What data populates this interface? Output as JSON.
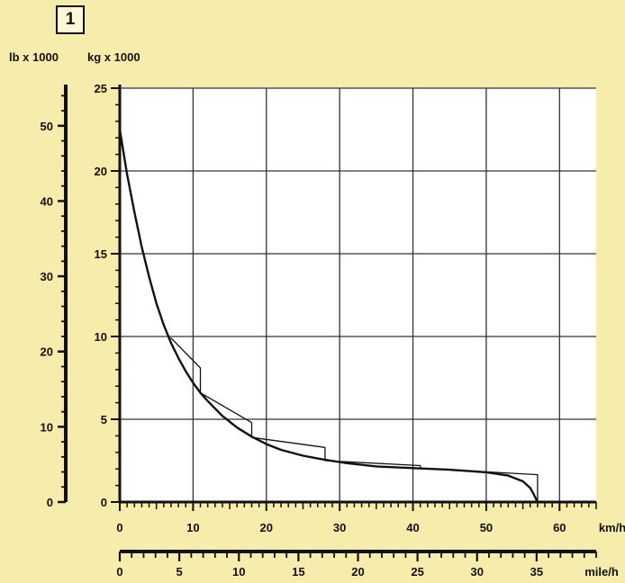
{
  "figure_number": "1",
  "colors": {
    "background": "#f6ecab",
    "plot_area": "#ffffff",
    "grid": "#2f3340",
    "curve": "#111111"
  },
  "chart_data": {
    "type": "line",
    "title": "",
    "x_axis_primary": {
      "unit": "km/h",
      "range": [
        0,
        65
      ],
      "ticks": [
        0,
        10,
        20,
        30,
        40,
        50,
        60
      ],
      "minor_step": 1
    },
    "x_axis_secondary": {
      "unit": "mile/h",
      "range": [
        0,
        40
      ],
      "ticks": [
        0,
        5,
        10,
        15,
        20,
        25,
        30,
        35
      ],
      "minor_step": 1
    },
    "y_axis_primary": {
      "unit": "kg x 1000",
      "range": [
        0,
        25
      ],
      "ticks": [
        0,
        5,
        10,
        15,
        20,
        25
      ],
      "minor_step": 1
    },
    "y_axis_secondary": {
      "unit": "lb x 1000",
      "range": [
        0,
        55
      ],
      "ticks": [
        0,
        10,
        20,
        30,
        40,
        50
      ],
      "minor_step": 2
    },
    "grid": true,
    "series": [
      {
        "id": "ideal",
        "points": [
          [
            0,
            22.5
          ],
          [
            1,
            19.8
          ],
          [
            2,
            17.5
          ],
          [
            3,
            15.4
          ],
          [
            4,
            13.6
          ],
          [
            5,
            12.0
          ],
          [
            6,
            10.7
          ],
          [
            7,
            9.6
          ],
          [
            8,
            8.7
          ],
          [
            9,
            7.9
          ],
          [
            10,
            7.2
          ],
          [
            11,
            6.6
          ],
          [
            12,
            6.1
          ],
          [
            14,
            5.2
          ],
          [
            16,
            4.5
          ],
          [
            18,
            3.95
          ],
          [
            20,
            3.5
          ],
          [
            22,
            3.15
          ],
          [
            25,
            2.8
          ],
          [
            28,
            2.55
          ],
          [
            31,
            2.35
          ],
          [
            35,
            2.15
          ],
          [
            40,
            2.05
          ],
          [
            45,
            1.95
          ],
          [
            50,
            1.8
          ],
          [
            53,
            1.6
          ],
          [
            55,
            1.25
          ],
          [
            56,
            0.85
          ],
          [
            56.5,
            0.45
          ],
          [
            57,
            0
          ]
        ]
      },
      {
        "id": "stepped",
        "points": [
          [
            7,
            9.9
          ],
          [
            11,
            8.1
          ],
          [
            11,
            6.6
          ],
          [
            18,
            4.8
          ],
          [
            18,
            3.9
          ],
          [
            28,
            3.3
          ],
          [
            28,
            2.5
          ],
          [
            41,
            2.2
          ],
          [
            41,
            2.05
          ],
          [
            57,
            1.65
          ],
          [
            57,
            0
          ]
        ]
      }
    ]
  }
}
